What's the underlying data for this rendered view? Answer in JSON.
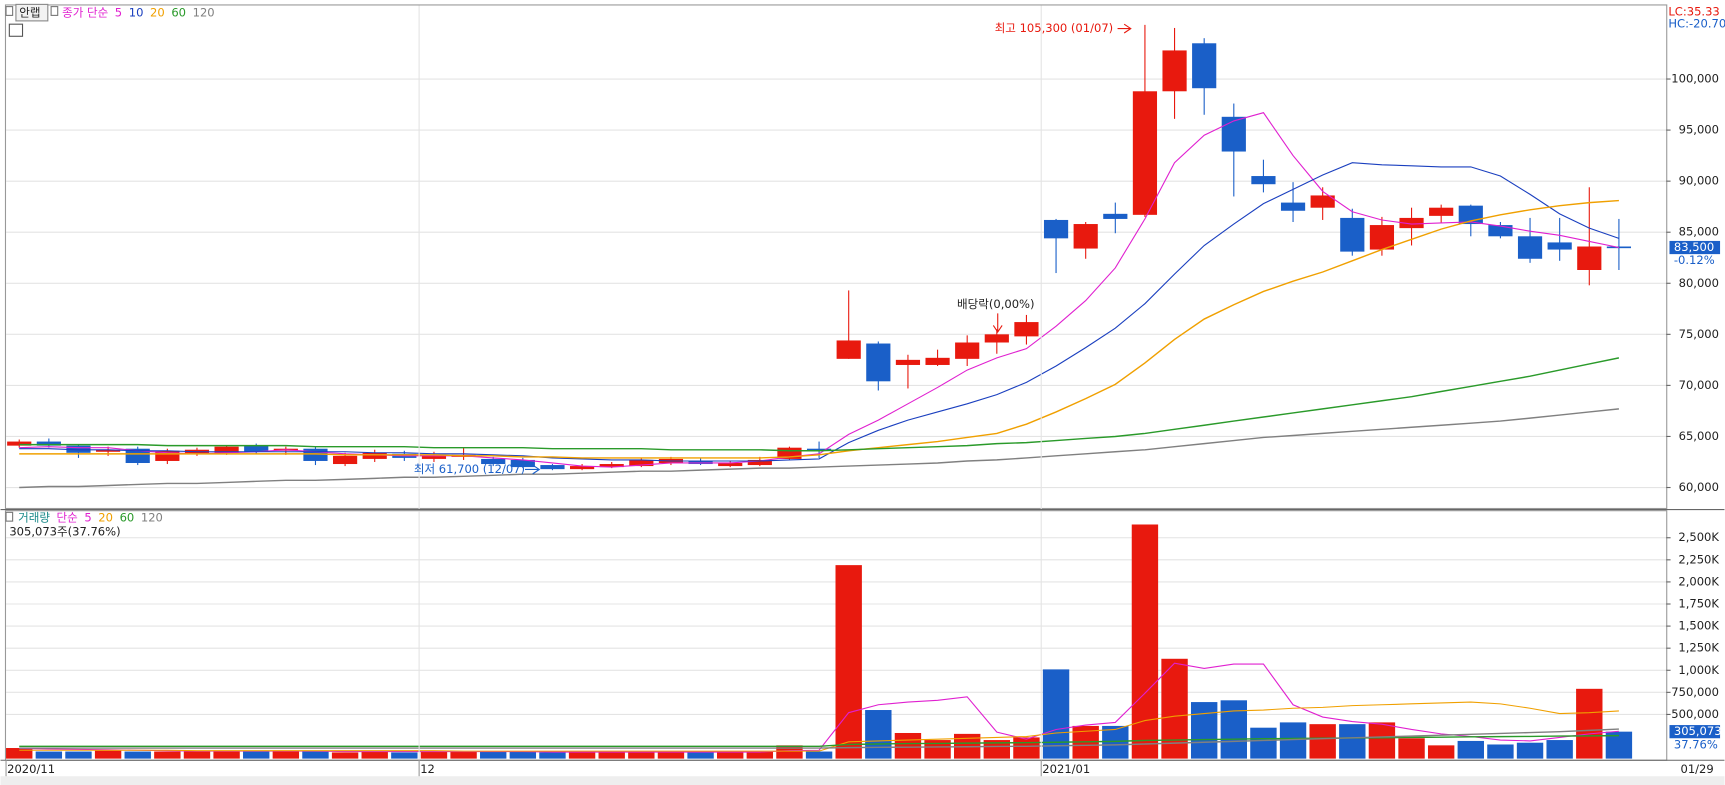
{
  "header": {
    "stock": "안랩",
    "lc": "LC:35.33",
    "hc": "HC:-20.70"
  },
  "chart_data": [
    {
      "type": "candlestick",
      "legend_prefix": "종가 단순",
      "open": [
        64100,
        64500,
        64100,
        63500,
        63800,
        62600,
        63300,
        63400,
        64100,
        63600,
        63800,
        62300,
        62800,
        63300,
        62800,
        63000,
        62800,
        62700,
        62200,
        61800,
        62000,
        62100,
        62400,
        62600,
        62100,
        62200,
        62800,
        63800,
        72600,
        74100,
        72000,
        72000,
        72600,
        74200,
        74800,
        86200,
        83400,
        86800,
        86700,
        98800,
        103500,
        96300,
        90500,
        87900,
        87400,
        86400,
        83300,
        85400,
        86600,
        87600,
        85700,
        84600,
        84000,
        81300,
        83600
      ],
      "high": [
        64700,
        64800,
        64200,
        64000,
        64000,
        63800,
        63900,
        64100,
        64300,
        64000,
        64000,
        63400,
        63700,
        63600,
        63500,
        63900,
        63000,
        62900,
        62300,
        62300,
        62500,
        62900,
        63000,
        62900,
        62600,
        63000,
        64000,
        64500,
        79300,
        74300,
        73000,
        73500,
        74900,
        75500,
        76900,
        86300,
        86000,
        87900,
        105300,
        105000,
        104000,
        97600,
        92100,
        89900,
        89400,
        87300,
        86500,
        87400,
        87700,
        87700,
        86000,
        86400,
        86400,
        89400,
        86300
      ],
      "low": [
        63900,
        63900,
        62900,
        63100,
        62200,
        62300,
        63100,
        63200,
        63300,
        63200,
        62200,
        62100,
        62500,
        62600,
        62500,
        62700,
        62100,
        61900,
        61700,
        61700,
        61900,
        62000,
        62200,
        62200,
        62000,
        62100,
        62700,
        62900,
        72600,
        69500,
        69700,
        71900,
        71900,
        73100,
        74000,
        81000,
        82400,
        84900,
        86500,
        96100,
        96500,
        88500,
        88900,
        86000,
        86200,
        82700,
        82700,
        83700,
        85900,
        84600,
        84400,
        82000,
        82200,
        79800,
        81300
      ],
      "close": [
        64500,
        64100,
        63400,
        63700,
        62400,
        63600,
        63700,
        64000,
        63500,
        63800,
        62600,
        63100,
        63400,
        62900,
        63200,
        63200,
        62300,
        62000,
        61800,
        62100,
        62300,
        62700,
        62800,
        62300,
        62400,
        62700,
        63900,
        63600,
        74400,
        70400,
        72500,
        72700,
        74200,
        75000,
        76200,
        84400,
        85800,
        86300,
        98800,
        102800,
        99100,
        92900,
        89700,
        87100,
        88600,
        83100,
        85700,
        86400,
        87400,
        85800,
        84600,
        82400,
        83300,
        83600,
        83500
      ],
      "up_color": "#e8190e",
      "down_color": "#1a5fc8",
      "series": [
        {
          "name": "5",
          "color": "#e020d0",
          "values": [
            63900,
            64000,
            63900,
            63900,
            63600,
            63400,
            63300,
            63400,
            63500,
            63700,
            63500,
            63300,
            63200,
            63100,
            63100,
            63100,
            62900,
            62700,
            62400,
            62100,
            62000,
            62200,
            62400,
            62400,
            62400,
            62600,
            63000,
            63300,
            65200,
            66600,
            68200,
            69800,
            71500,
            72700,
            73600,
            75800,
            78300,
            81500,
            86300,
            91800,
            94500,
            95900,
            96700,
            92500,
            89000,
            87000,
            86200,
            85800,
            85900,
            86000,
            85600,
            85100,
            84700,
            84100,
            83500
          ]
        },
        {
          "name": "10",
          "color": "#1a3fbf",
          "values": [
            63800,
            63800,
            63700,
            63700,
            63600,
            63600,
            63500,
            63500,
            63500,
            63500,
            63500,
            63500,
            63400,
            63400,
            63300,
            63300,
            63200,
            63100,
            62900,
            62800,
            62700,
            62700,
            62600,
            62600,
            62600,
            62600,
            62700,
            62800,
            64400,
            65600,
            66600,
            67400,
            68200,
            69100,
            70300,
            71900,
            73700,
            75600,
            78000,
            80900,
            83700,
            85800,
            87800,
            89200,
            90600,
            91800,
            91600,
            91500,
            91400,
            91400,
            90500,
            88700,
            86800,
            85400,
            84400
          ]
        },
        {
          "name": "20",
          "color": "#f0a000",
          "values": [
            63300,
            63300,
            63300,
            63300,
            63300,
            63300,
            63300,
            63300,
            63300,
            63300,
            63300,
            63200,
            63200,
            63200,
            63200,
            63100,
            63100,
            63000,
            63000,
            62900,
            62900,
            62900,
            62900,
            62900,
            62900,
            62900,
            63000,
            63200,
            63600,
            63900,
            64200,
            64500,
            64900,
            65300,
            66200,
            67400,
            68700,
            70100,
            72200,
            74500,
            76500,
            77900,
            79200,
            80200,
            81100,
            82200,
            83300,
            84300,
            85300,
            86100,
            86700,
            87200,
            87600,
            87900,
            88100
          ]
        },
        {
          "name": "60",
          "color": "#2a9a2a",
          "values": [
            64200,
            64200,
            64200,
            64200,
            64200,
            64100,
            64100,
            64100,
            64100,
            64100,
            64000,
            64000,
            64000,
            64000,
            63900,
            63900,
            63900,
            63900,
            63800,
            63800,
            63800,
            63800,
            63700,
            63700,
            63700,
            63700,
            63600,
            63600,
            63700,
            63800,
            63900,
            64000,
            64100,
            64300,
            64400,
            64600,
            64800,
            65000,
            65300,
            65700,
            66100,
            66500,
            66900,
            67300,
            67700,
            68100,
            68500,
            68900,
            69400,
            69900,
            70400,
            70900,
            71500,
            72100,
            72700
          ]
        },
        {
          "name": "120",
          "color": "#808080",
          "values": [
            60000,
            60100,
            60100,
            60200,
            60300,
            60400,
            60400,
            60500,
            60600,
            60700,
            60700,
            60800,
            60900,
            61000,
            61000,
            61100,
            61200,
            61300,
            61300,
            61400,
            61500,
            61600,
            61600,
            61700,
            61800,
            61900,
            61900,
            62000,
            62100,
            62200,
            62300,
            62400,
            62600,
            62700,
            62900,
            63100,
            63300,
            63500,
            63700,
            64000,
            64300,
            64600,
            64900,
            65100,
            65300,
            65500,
            65700,
            65900,
            66100,
            66300,
            66500,
            66800,
            67100,
            67400,
            67700
          ]
        }
      ],
      "ylim": [
        58000,
        107200
      ],
      "yticks": [
        {
          "value": 60000,
          "label": "60,000"
        },
        {
          "value": 65000,
          "label": "65,000"
        },
        {
          "value": 70000,
          "label": "70,000"
        },
        {
          "value": 75000,
          "label": "75,000"
        },
        {
          "value": 80000,
          "label": "80,000"
        },
        {
          "value": 85000,
          "label": "85,000"
        },
        {
          "value": 90000,
          "label": "90,000"
        },
        {
          "value": 95000,
          "label": "95,000"
        },
        {
          "value": 100000,
          "label": "100,000"
        }
      ],
      "grid": true,
      "last_price": {
        "value": 83500,
        "label": "83,500"
      },
      "change": "-0.12%",
      "annotations": {
        "high": "최고 105,300 (01/07)",
        "low": "최저 61,700 (12/07)",
        "ex_dividend": "배당락(0,00%)"
      }
    },
    {
      "type": "bar",
      "title": "거래량",
      "legend_prefix": "단순",
      "categories": [
        "2020/11",
        null,
        null,
        null,
        null,
        null,
        null,
        null,
        null,
        null,
        null,
        null,
        null,
        null,
        "12",
        null,
        null,
        null,
        null,
        null,
        null,
        null,
        null,
        null,
        null,
        null,
        null,
        null,
        null,
        null,
        null,
        null,
        null,
        null,
        null,
        "2021/01",
        null,
        null,
        null,
        null,
        null,
        null,
        null,
        null,
        null,
        null,
        null,
        null,
        null,
        null,
        null,
        null,
        null,
        null,
        "01/29"
      ],
      "values": [
        120000,
        80000,
        80000,
        90000,
        80000,
        80000,
        80000,
        80000,
        80000,
        90000,
        80000,
        70000,
        80000,
        70000,
        80000,
        80000,
        80000,
        80000,
        70000,
        70000,
        80000,
        80000,
        80000,
        70000,
        70000,
        80000,
        150000,
        80000,
        2190000,
        550000,
        290000,
        210000,
        280000,
        210000,
        240000,
        1010000,
        370000,
        370000,
        2650000,
        1130000,
        640000,
        660000,
        350000,
        410000,
        390000,
        390000,
        410000,
        230000,
        150000,
        200000,
        160000,
        180000,
        210000,
        790000,
        305073
      ],
      "series": [
        {
          "name": "5",
          "color": "#e020d0",
          "values": [
            115000,
            110000,
            105000,
            100000,
            95000,
            90000,
            85000,
            85000,
            85000,
            85000,
            85000,
            80000,
            80000,
            80000,
            80000,
            80000,
            80000,
            80000,
            75000,
            75000,
            75000,
            75000,
            75000,
            75000,
            75000,
            75000,
            90000,
            95000,
            520000,
            610000,
            640000,
            660000,
            700000,
            300000,
            220000,
            330000,
            380000,
            410000,
            740000,
            1080000,
            1020000,
            1070000,
            1070000,
            610000,
            470000,
            420000,
            390000,
            330000,
            280000,
            250000,
            210000,
            200000,
            240000,
            280000,
            310000
          ]
        },
        {
          "name": "20",
          "color": "#f0a000",
          "values": [
            95000,
            95000,
            95000,
            95000,
            95000,
            95000,
            90000,
            90000,
            90000,
            90000,
            90000,
            90000,
            90000,
            90000,
            90000,
            85000,
            85000,
            85000,
            85000,
            85000,
            85000,
            85000,
            85000,
            85000,
            85000,
            85000,
            85000,
            85000,
            190000,
            200000,
            210000,
            220000,
            230000,
            240000,
            250000,
            290000,
            310000,
            330000,
            430000,
            480000,
            510000,
            540000,
            550000,
            570000,
            580000,
            600000,
            610000,
            620000,
            630000,
            640000,
            620000,
            570000,
            510000,
            520000,
            540000
          ]
        },
        {
          "name": "60",
          "color": "#2a9a2a",
          "values": [
            140000,
            140000,
            140000,
            140000,
            140000,
            140000,
            140000,
            140000,
            140000,
            140000,
            140000,
            140000,
            140000,
            140000,
            140000,
            140000,
            140000,
            140000,
            140000,
            140000,
            140000,
            140000,
            140000,
            140000,
            140000,
            140000,
            140000,
            140000,
            160000,
            165000,
            170000,
            172000,
            175000,
            178000,
            180000,
            185000,
            190000,
            195000,
            205000,
            210000,
            215000,
            220000,
            225000,
            228000,
            231000,
            234000,
            237000,
            240000,
            243000,
            246000,
            249000,
            252000,
            255000,
            258000,
            260000
          ]
        },
        {
          "name": "120",
          "color": "#808080",
          "values": [
            120000,
            120000,
            120000,
            120000,
            120000,
            120000,
            120000,
            120000,
            120000,
            120000,
            120000,
            120000,
            120000,
            120000,
            120000,
            120000,
            120000,
            120000,
            120000,
            120000,
            120000,
            120000,
            120000,
            120000,
            120000,
            120000,
            120000,
            120000,
            125000,
            128000,
            130000,
            132000,
            135000,
            138000,
            140000,
            145000,
            150000,
            155000,
            165000,
            175000,
            185000,
            195000,
            205000,
            215000,
            225000,
            235000,
            245000,
            255000,
            265000,
            275000,
            285000,
            295000,
            305000,
            320000,
            335000
          ]
        }
      ],
      "ylim": [
        0,
        2800000
      ],
      "yticks": [
        {
          "value": 500000,
          "label": "500,000"
        },
        {
          "value": 750000,
          "label": "750,000"
        },
        {
          "value": 1000000,
          "label": "1,000K"
        },
        {
          "value": 1250000,
          "label": "1,250K"
        },
        {
          "value": 1500000,
          "label": "1,500K"
        },
        {
          "value": 1750000,
          "label": "1,750K"
        },
        {
          "value": 2000000,
          "label": "2,000K"
        },
        {
          "value": 2250000,
          "label": "2,250K"
        },
        {
          "value": 2500000,
          "label": "2,500K"
        }
      ],
      "grid": true,
      "info": "305,073주(37.76%)",
      "last_value": {
        "value": 305073,
        "label": "305,073"
      },
      "ratio": "37.76%"
    }
  ]
}
